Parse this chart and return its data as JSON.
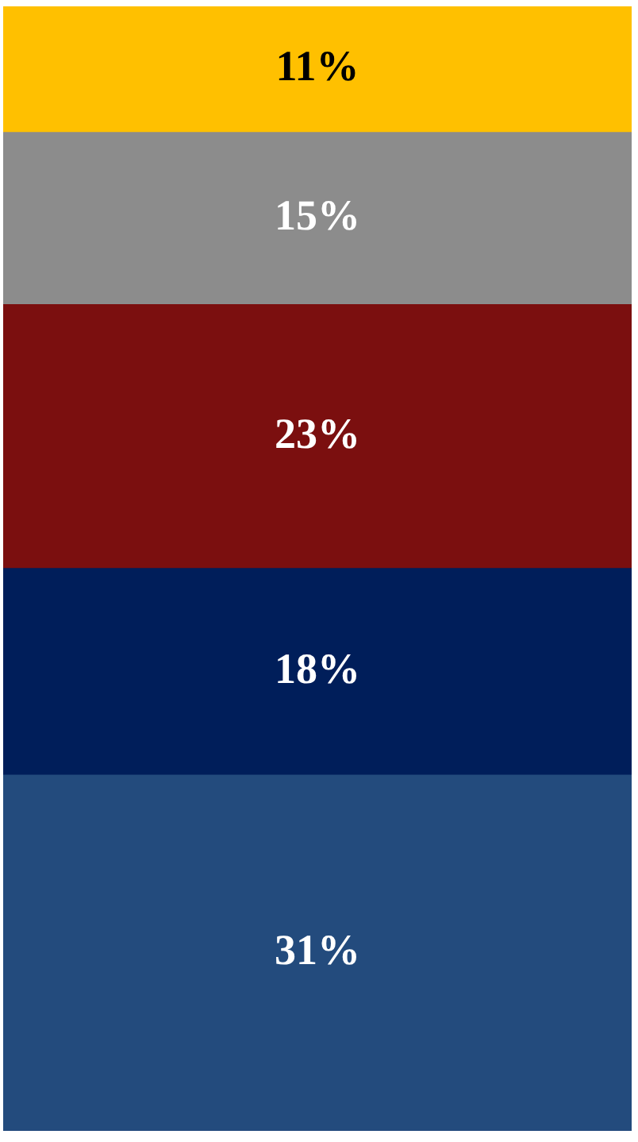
{
  "chart_data": {
    "type": "bar",
    "stacked": true,
    "categories": [
      null
    ],
    "series": [
      {
        "color": "#234b7d",
        "values": [
          31
        ],
        "value_labels": [
          "31%"
        ]
      },
      {
        "color": "#001e5a",
        "values": [
          18
        ],
        "value_labels": [
          "18%"
        ]
      },
      {
        "color": "#7b0f0f",
        "values": [
          23
        ],
        "value_labels": [
          "23%"
        ]
      },
      {
        "color": "#8c8c8c",
        "values": [
          15
        ],
        "value_labels": [
          "15%"
        ]
      },
      {
        "color": "#ffc000",
        "values": [
          11
        ],
        "value_labels": [
          "11%"
        ]
      }
    ],
    "legend": false
  }
}
